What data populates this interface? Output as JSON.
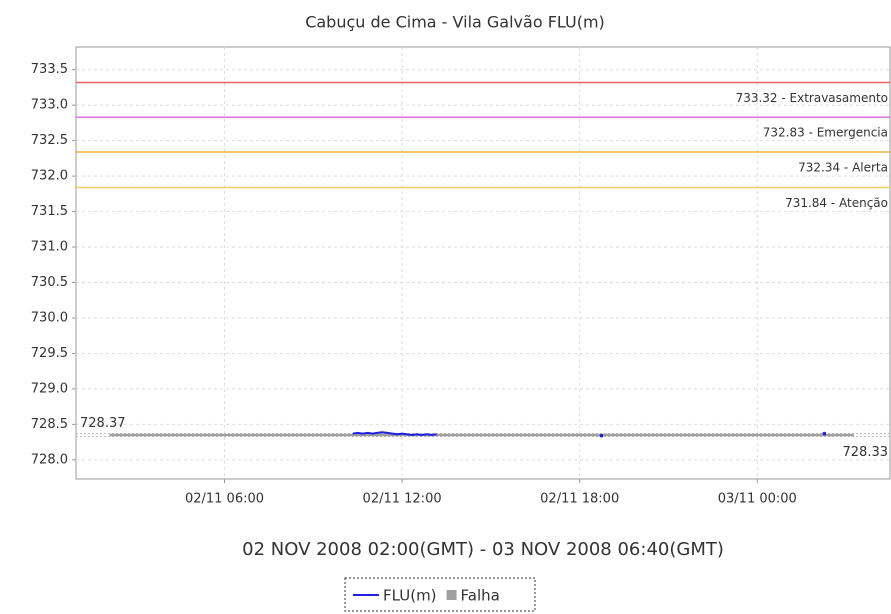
{
  "chart_data": {
    "type": "line",
    "title": "Cabuçu de Cima - Vila Galvão FLU(m)",
    "xlabel": "02 NOV 2008 02:00(GMT) - 03 NOV 2008 06:40(GMT)",
    "xlim": [
      "2008-11-02T00:59",
      "2008-11-03T04:29"
    ],
    "xticks": [
      {
        "value": "2008-11-02T06:00",
        "label": "02/11 06:00"
      },
      {
        "value": "2008-11-02T12:00",
        "label": "02/11 12:00"
      },
      {
        "value": "2008-11-02T18:00",
        "label": "02/11 18:00"
      },
      {
        "value": "2008-11-03T00:00",
        "label": "03/11 00:00"
      }
    ],
    "ylim": [
      727.73,
      733.82
    ],
    "yticks": [
      {
        "value": 728,
        "label": "728.0"
      },
      728.5,
      {
        "value": 729,
        "label": "729.0"
      },
      729.5,
      {
        "value": 730,
        "label": "730.0"
      },
      730.5,
      {
        "value": 731,
        "label": "731.0"
      },
      731.5,
      {
        "value": 732,
        "label": "732.0"
      },
      732.5,
      {
        "value": 733,
        "label": "733.0"
      },
      733.5
    ],
    "grid": true,
    "thresholds": [
      {
        "value": 733.32,
        "label": "733.32 - Extravasamento",
        "color": "#f06060"
      },
      {
        "value": 732.83,
        "label": "732.83 - Emergencia",
        "color": "#e070e0"
      },
      {
        "value": 732.34,
        "label": "732.34 - Alerta",
        "color": "#f0b040"
      },
      {
        "value": 731.84,
        "label": "731.84 - Atenção",
        "color": "#f0d060"
      }
    ],
    "markers": [
      {
        "value": 728.37,
        "label": "728.37",
        "side": "left"
      },
      {
        "value": 728.33,
        "label": "728.33",
        "side": "right"
      }
    ],
    "series": [
      {
        "name": "FLU(m)",
        "color": "#2020e0",
        "x": [
          "2008-11-02T10:20",
          "2008-11-02T10:30",
          "2008-11-02T10:40",
          "2008-11-02T10:50",
          "2008-11-02T11:00",
          "2008-11-02T11:10",
          "2008-11-02T11:20",
          "2008-11-02T11:30",
          "2008-11-02T11:40",
          "2008-11-02T11:50",
          "2008-11-02T12:00",
          "2008-11-02T12:10",
          "2008-11-02T12:20",
          "2008-11-02T12:30",
          "2008-11-02T12:40",
          "2008-11-02T12:50",
          "2008-11-02T13:00",
          "2008-11-02T13:10",
          "2008-11-02T15:00",
          "2008-11-02T18:44",
          "2008-11-02T22:00",
          "2008-11-03T02:16"
        ],
        "values": [
          728.37,
          728.38,
          728.37,
          728.38,
          728.37,
          728.38,
          728.39,
          728.38,
          728.37,
          728.36,
          728.37,
          728.36,
          728.35,
          728.36,
          728.35,
          728.36,
          728.35,
          728.36,
          null,
          728.34,
          null,
          728.37
        ]
      },
      {
        "name": "Falha",
        "color": "#a0a0a0",
        "x": [
          "2008-11-02T02:07",
          "2008-11-03T03:16"
        ],
        "values": [
          728.35,
          728.35
        ]
      }
    ],
    "legend": "bottom"
  }
}
